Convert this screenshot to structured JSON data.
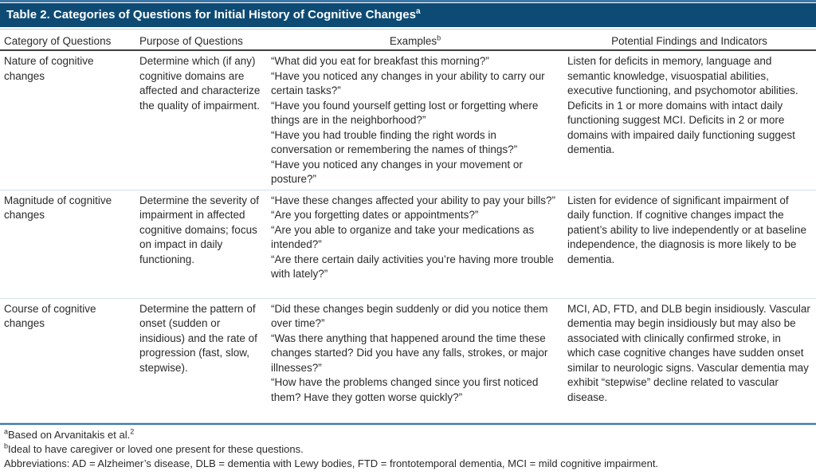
{
  "table": {
    "title": "Table 2. Categories of Questions for Initial History of Cognitive Changes",
    "title_superscript": "a",
    "columns": {
      "category": "Category of Questions",
      "purpose": "Purpose of Questions",
      "examples": "Examples",
      "examples_superscript": "b",
      "findings": "Potential Findings and Indicators"
    },
    "rows": [
      {
        "category": "Nature of cognitive changes",
        "purpose": "Determine which (if any) cognitive domains are affected and characterize the quality of impairment.",
        "examples": [
          "“What did you eat for breakfast this morning?”",
          "“Have you noticed any changes in your ability to carry our certain tasks?”",
          "“Have you found yourself getting lost or forgetting where things are in the neighborhood?”",
          "“Have you had trouble finding the right words in conversation or remembering the names of things?”",
          "“Have you noticed any changes in your movement or posture?”"
        ],
        "findings": "Listen for deficits in memory, language and semantic knowledge, visuospatial abilities, executive functioning, and psychomotor abilities. Deficits in 1 or more domains with intact daily functioning suggest MCI. Deficits in 2 or more domains with impaired daily functioning suggest dementia."
      },
      {
        "category": "Magnitude of cognitive changes",
        "purpose": "Determine the severity of impairment in affected cognitive domains; focus on impact in daily functioning.",
        "examples": [
          "“Have these changes affected your ability to pay your bills?”",
          "“Are you forgetting dates or appointments?”",
          "“Are you able to organize and take your medications as intended?”",
          "“Are there certain daily activities you’re having more trouble with lately?”"
        ],
        "findings": "Listen for evidence of significant impairment of daily function. If cognitive changes impact the patient’s ability to live independently or at baseline independence, the diagnosis is more likely to be dementia."
      },
      {
        "category": "Course of cognitive changes",
        "purpose": "Determine the pattern of onset (sudden or insidious) and the rate of progression (fast, slow, stepwise).",
        "examples": [
          "“Did these changes begin suddenly or did you notice them over time?”",
          "“Was there anything that happened around the time these changes started? Did you have any falls, strokes, or major illnesses?”",
          "“How have the problems changed since you first noticed them? Have they gotten worse quickly?”"
        ],
        "findings": "MCI, AD, FTD, and DLB begin insidiously. Vascular dementia may begin insidiously but may also be associated with clinically confirmed stroke, in which case cognitive changes have sudden onset similar to neurologic signs. Vascular dementia may exhibit “stepwise” decline related to vascular disease."
      }
    ]
  },
  "footnotes": {
    "a_marker": "a",
    "a_text": "Based on Arvanitakis et al.",
    "a_reference": "2",
    "b_marker": "b",
    "b_text": "Ideal to have caregiver or loved one present for these questions.",
    "abbreviations": "Abbreviations: AD = Alzheimer’s disease, DLB = dementia with Lewy bodies, FTD = frontotemporal dementia, MCI = mild cognitive impairment."
  },
  "colors": {
    "title_band_background": "#0e4b74",
    "title_text": "#ffffff",
    "accent_rule_blue": "#3a78a9",
    "light_rule_blue": "#cfe0ec",
    "header_rule_dark": "#3f3f3f",
    "body_text": "#2b2a2a"
  }
}
